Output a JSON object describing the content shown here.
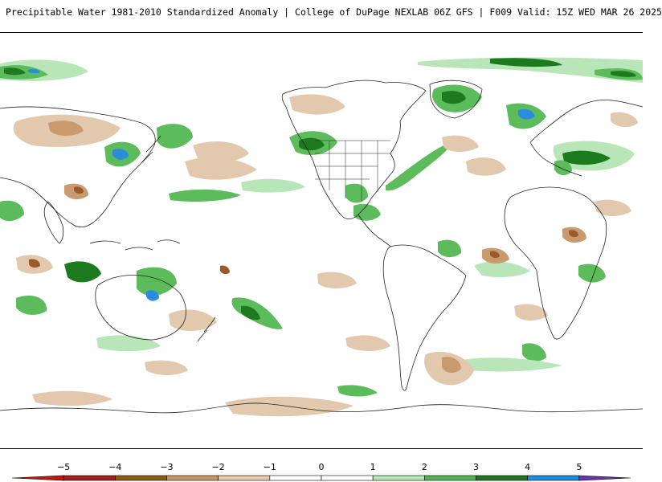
{
  "header": {
    "title": "Precipitable Water 1981-2010 Standardized Anomaly | College of DuPage NEXLAB  06Z GFS | F009 Valid: 15Z WED MAR 26 2025"
  },
  "legend": {
    "ticks": [
      "-5",
      "-4",
      "-3",
      "-2",
      "-1",
      "0",
      "1",
      "2",
      "3",
      "4",
      "5"
    ],
    "colors": [
      "#c8140a",
      "#a01e1e",
      "#8c5a14",
      "#c89664",
      "#e6c8aa",
      "#ffffff",
      "#ffffff",
      "#b4e6b4",
      "#50b450",
      "#1e781e",
      "#1e8cdc",
      "#6e32b4"
    ]
  },
  "palette": {
    "dry_light": "#e2c8ac",
    "dry_mid": "#c89a6e",
    "dry_dark": "#9a5a2a",
    "wet_light": "#b8e6b8",
    "wet_mid": "#5cbc5c",
    "wet_dark": "#1e7a1e",
    "wet_blue": "#2a8cdc",
    "coast": "#222222"
  }
}
